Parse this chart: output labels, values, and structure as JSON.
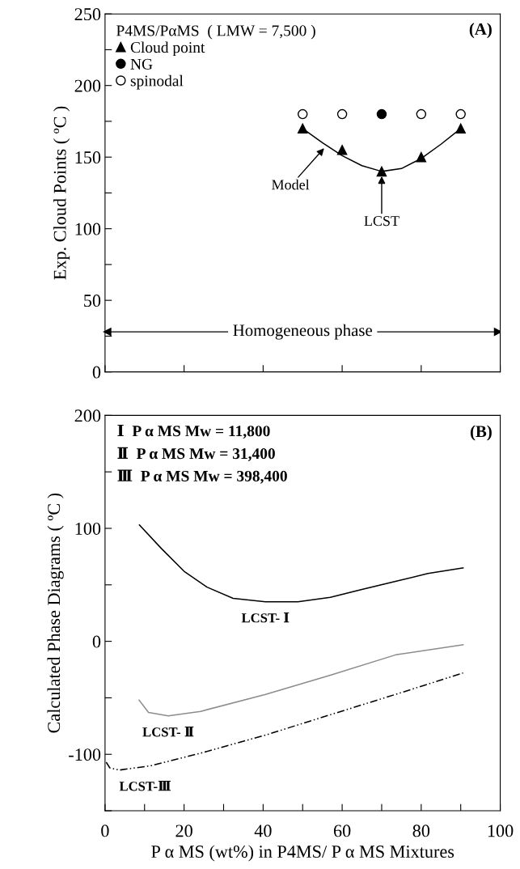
{
  "chart_data": [
    {
      "type": "scatter",
      "legend_title": "P4MS/PαMS  ( LMW = 7,500 )",
      "ylabel": "Exp. Cloud Points ( ºC )",
      "xlim": [
        0,
        100
      ],
      "ylim": [
        0,
        250
      ],
      "xticks": [
        0,
        20,
        40,
        60,
        80,
        100
      ],
      "yticks": [
        0,
        {
          "value": 25,
          "label": null
        },
        50,
        {
          "value": 75,
          "label": null
        },
        100,
        {
          "value": 125,
          "label": null
        },
        150,
        {
          "value": 175,
          "label": null
        },
        200,
        {
          "value": 225,
          "label": null
        },
        250
      ],
      "tick_labels": "y",
      "grid": false,
      "legend": "top left",
      "series": [
        {
          "type": "line",
          "color": "#000000",
          "marker": "none",
          "line_style": "solid",
          "x": [
            50,
            55,
            60,
            65,
            70,
            75,
            80,
            85,
            90
          ],
          "values": [
            170,
            160,
            151,
            144,
            140,
            142,
            149,
            159,
            170
          ]
        },
        {
          "name": "Cloud point",
          "color": "#000000",
          "marker": "triangle",
          "x": [
            50,
            60,
            70,
            80,
            90
          ],
          "values": [
            170,
            155,
            140,
            150,
            170
          ]
        },
        {
          "name": "NG",
          "color": "#000000",
          "marker": "circle",
          "x": [
            70
          ],
          "values": [
            180
          ]
        },
        {
          "name": "spinodal",
          "color": "#ffffff",
          "marker": "circle",
          "x": [
            50,
            60,
            80,
            90
          ],
          "values": [
            180,
            180,
            180,
            180
          ]
        }
      ],
      "annotations": [
        "(A)",
        {
          "text": "Model",
          "x": 56,
          "y": 158
        },
        {
          "text": "LCST",
          "x": 70,
          "y": 139
        }
      ],
      "ref_lines": [
        {
          "axis": "y",
          "value": 28,
          "label": "Homogeneous phase",
          "color": "#000000",
          "line_style": "solid"
        }
      ]
    },
    {
      "type": "line",
      "ylabel": "Calculated Phase Diagrams ( ºC )",
      "xlabel": "P α MS (wt%) in P4MS/ P α MS Mixtures",
      "xlim": [
        0,
        100
      ],
      "ylim": [
        -150,
        200
      ],
      "xticks": [
        0,
        {
          "value": 10,
          "label": null
        },
        20,
        {
          "value": 30,
          "label": null
        },
        40,
        {
          "value": 50,
          "label": null
        },
        60,
        {
          "value": 70,
          "label": null
        },
        80,
        {
          "value": 90,
          "label": null
        },
        100
      ],
      "yticks": [
        {
          "value": -150,
          "label": null
        },
        -100,
        {
          "value": -50,
          "label": null
        },
        0,
        {
          "value": 50,
          "label": null
        },
        100,
        {
          "value": 150,
          "label": null
        },
        200
      ],
      "grid": false,
      "series": [
        {
          "name": "LCST- Ⅰ",
          "color": "#000000",
          "line_style": "solid",
          "x": [
            8.7,
            14.3,
            20,
            25.8,
            32.4,
            40.6,
            48.8,
            57,
            65,
            73.5,
            81.7,
            90.6
          ],
          "values": [
            103,
            82,
            62,
            48,
            38,
            35,
            35,
            39,
            46,
            53,
            60,
            65
          ]
        },
        {
          "name": "LCST- Ⅱ",
          "color": "#8c8c8c",
          "line_style": "solid",
          "x": [
            8.6,
            11,
            16,
            24.2,
            40.6,
            57,
            73.5,
            90.6
          ],
          "values": [
            -52,
            -63,
            -66,
            -62,
            -47,
            -30,
            -12,
            -3
          ]
        },
        {
          "name": "LCST-Ⅲ",
          "color": "#000000",
          "line_style": "dashdot",
          "x": [
            0.3,
            1.2,
            3.6,
            11.8,
            24.2,
            40.6,
            57,
            73.5,
            90.6
          ],
          "values": [
            -107,
            -112,
            -114,
            -110,
            -99,
            -83,
            -65,
            -47,
            -28
          ]
        }
      ],
      "annotations": [
        "(B)",
        "Ⅰ  P α MS Mw = 11,800",
        "Ⅱ  P α MS Mw = 31,400",
        "Ⅲ  P α MS Mw = 398,400"
      ]
    }
  ]
}
